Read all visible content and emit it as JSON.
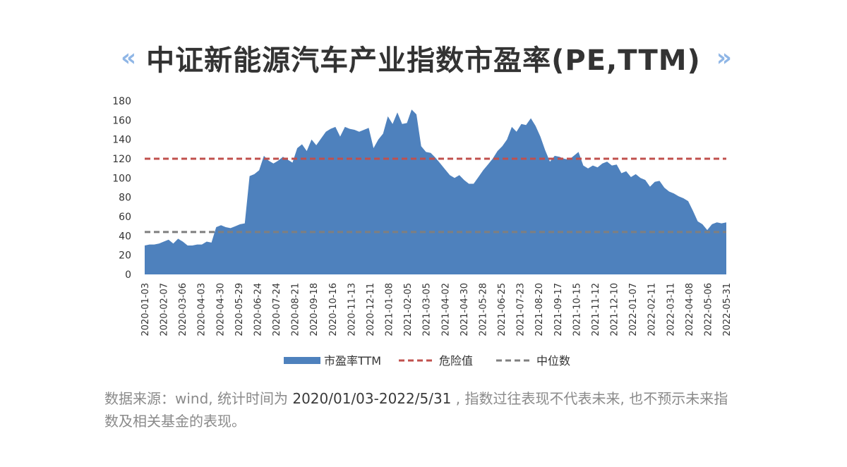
{
  "title": "中证新能源汽车产业指数市盈率(PE,TTM)",
  "title_decor": {
    "left": "«",
    "right": "»",
    "colors": [
      "#8fb6e6",
      "#f2c27c"
    ]
  },
  "footnote": {
    "part1": "数据来源：wind, 统计时间为",
    "period": "2020/01/03-2022/5/31",
    "part2": ", 指数过往表现不代表未来, 也不预示未来指数及相关基金的表现。"
  },
  "chart_data": {
    "type": "area",
    "title": "中证新能源汽车产业指数市盈率(PE,TTM)",
    "ylim": [
      0,
      180
    ],
    "yticks": [
      0,
      20,
      40,
      60,
      80,
      100,
      120,
      140,
      160,
      180
    ],
    "grid": false,
    "legend_position": "bottom",
    "x_tick_labels": [
      "2020-01-03",
      "2020-02-07",
      "2020-03-06",
      "2020-04-03",
      "2020-04-30",
      "2020-05-29",
      "2020-06-24",
      "2020-07-24",
      "2020-08-21",
      "2020-09-18",
      "2020-10-16",
      "2020-11-13",
      "2020-12-11",
      "2021-01-08",
      "2021-02-05",
      "2021-03-05",
      "2021-04-02",
      "2021-04-30",
      "2021-05-28",
      "2021-06-25",
      "2021-07-23",
      "2021-08-20",
      "2021-09-17",
      "2021-10-15",
      "2021-11-12",
      "2021-12-10",
      "2022-01-07",
      "2022-02-11",
      "2022-03-11",
      "2022-04-08",
      "2022-05-06",
      "2022-05-31"
    ],
    "series": [
      {
        "name": "市盈率TTM",
        "kind": "area",
        "color": "#4e81bd",
        "values": [
          30,
          31,
          31,
          32,
          34,
          36,
          32,
          37,
          34,
          30,
          30,
          31,
          31,
          34,
          33,
          49,
          51,
          49,
          48,
          50,
          52,
          53,
          102,
          104,
          108,
          123,
          118,
          115,
          118,
          122,
          119,
          116,
          131,
          135,
          128,
          140,
          134,
          141,
          148,
          151,
          153,
          143,
          153,
          151,
          150,
          148,
          150,
          152,
          131,
          140,
          146,
          164,
          156,
          168,
          156,
          157,
          171,
          166,
          133,
          127,
          126,
          121,
          115,
          109,
          103,
          100,
          103,
          98,
          94,
          94,
          101,
          108,
          114,
          120,
          128,
          133,
          140,
          153,
          148,
          156,
          155,
          162,
          154,
          143,
          129,
          117,
          123,
          122,
          120,
          119,
          123,
          127,
          113,
          110,
          113,
          111,
          115,
          117,
          113,
          114,
          105,
          107,
          101,
          104,
          100,
          98,
          91,
          96,
          97,
          90,
          86,
          84,
          81,
          79,
          76,
          66,
          55,
          52,
          46,
          52,
          54,
          53,
          54
        ]
      },
      {
        "name": "危险值",
        "kind": "dashed",
        "color": "#c0504d",
        "value": 120
      },
      {
        "name": "中位数",
        "kind": "dashed",
        "color": "#7f7f7f",
        "value": 44
      }
    ]
  }
}
